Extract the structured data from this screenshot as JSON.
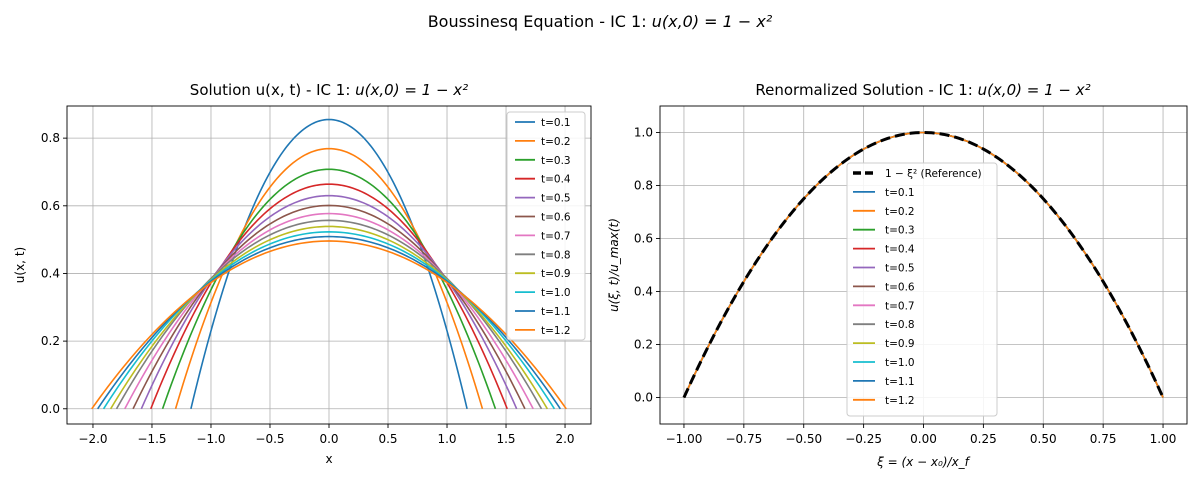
{
  "figure": {
    "suptitle_plain": "Boussinesq Equation - IC 1: ",
    "suptitle_math": "u(x,0) = 1 − x²"
  },
  "chart_data": [
    {
      "type": "line",
      "title_plain": "Solution u(x, t) - IC 1: ",
      "title_math": "u(x,0) = 1 − x²",
      "xlabel": "x",
      "ylabel": "u(x, t)",
      "xlim": [
        -2.22,
        2.22
      ],
      "ylim": [
        -0.045,
        0.895
      ],
      "xticks": [
        -2.0,
        -1.5,
        -1.0,
        -0.5,
        0.0,
        0.5,
        1.0,
        1.5,
        2.0
      ],
      "xtick_labels": [
        "−2.0",
        "−1.5",
        "−1.0",
        "−0.5",
        "0.0",
        "0.5",
        "1.0",
        "1.5",
        "2.0"
      ],
      "yticks": [
        0.0,
        0.2,
        0.4,
        0.6,
        0.8
      ],
      "ytick_labels": [
        "0.0",
        "0.2",
        "0.4",
        "0.6",
        "0.8"
      ],
      "grid": true,
      "legend_position": "upper right",
      "curve_shape": "u(x,t) = u_max(t) · (1 − (x / x_f(t))²)",
      "series": [
        {
          "name": "t=0.1",
          "color": "#1f77b4",
          "u_max": 0.855,
          "x_f": 1.17
        },
        {
          "name": "t=0.2",
          "color": "#ff7f0e",
          "u_max": 0.769,
          "x_f": 1.3
        },
        {
          "name": "t=0.3",
          "color": "#2ca02c",
          "u_max": 0.708,
          "x_f": 1.41
        },
        {
          "name": "t=0.4",
          "color": "#d62728",
          "u_max": 0.664,
          "x_f": 1.51
        },
        {
          "name": "t=0.5",
          "color": "#9467bd",
          "u_max": 0.63,
          "x_f": 1.59
        },
        {
          "name": "t=0.6",
          "color": "#8c564b",
          "u_max": 0.601,
          "x_f": 1.66
        },
        {
          "name": "t=0.7",
          "color": "#e377c2",
          "u_max": 0.577,
          "x_f": 1.73
        },
        {
          "name": "t=0.8",
          "color": "#7f7f7f",
          "u_max": 0.557,
          "x_f": 1.8
        },
        {
          "name": "t=0.9",
          "color": "#bcbd22",
          "u_max": 0.539,
          "x_f": 1.85
        },
        {
          "name": "t=1.0",
          "color": "#17becf",
          "u_max": 0.523,
          "x_f": 1.91
        },
        {
          "name": "t=1.1",
          "color": "#1f77b4",
          "u_max": 0.509,
          "x_f": 1.96
        },
        {
          "name": "t=1.2",
          "color": "#ff7f0e",
          "u_max": 0.496,
          "x_f": 2.01
        }
      ]
    },
    {
      "type": "line",
      "title_plain": "Renormalized Solution - IC 1: ",
      "title_math": "u(x,0) = 1 − x²",
      "xlabel": "ξ = (x − x₀)/x_f",
      "ylabel": "u(ξ, t)/u_max(t)",
      "xlim": [
        -1.1,
        1.1
      ],
      "ylim": [
        -0.1,
        1.1
      ],
      "xticks": [
        -1.0,
        -0.75,
        -0.5,
        -0.25,
        0.0,
        0.25,
        0.5,
        0.75,
        1.0
      ],
      "xtick_labels": [
        "−1.00",
        "−0.75",
        "−0.50",
        "−0.25",
        "0.00",
        "0.25",
        "0.50",
        "0.75",
        "1.00"
      ],
      "yticks": [
        0.0,
        0.2,
        0.4,
        0.6,
        0.8,
        1.0
      ],
      "ytick_labels": [
        "0.0",
        "0.2",
        "0.4",
        "0.6",
        "0.8",
        "1.0"
      ],
      "grid": true,
      "legend_position": "center",
      "curve_shape": "u/u_max = 1 − ξ²",
      "reference": {
        "name": "1 − ξ² (Reference)",
        "color": "#000000",
        "style": "dashed"
      },
      "series": [
        {
          "name": "t=0.1",
          "color": "#1f77b4"
        },
        {
          "name": "t=0.2",
          "color": "#ff7f0e"
        },
        {
          "name": "t=0.3",
          "color": "#2ca02c"
        },
        {
          "name": "t=0.4",
          "color": "#d62728"
        },
        {
          "name": "t=0.5",
          "color": "#9467bd"
        },
        {
          "name": "t=0.6",
          "color": "#8c564b"
        },
        {
          "name": "t=0.7",
          "color": "#e377c2"
        },
        {
          "name": "t=0.8",
          "color": "#7f7f7f"
        },
        {
          "name": "t=0.9",
          "color": "#bcbd22"
        },
        {
          "name": "t=1.0",
          "color": "#17becf"
        },
        {
          "name": "t=1.1",
          "color": "#1f77b4"
        },
        {
          "name": "t=1.2",
          "color": "#ff7f0e"
        }
      ]
    }
  ]
}
